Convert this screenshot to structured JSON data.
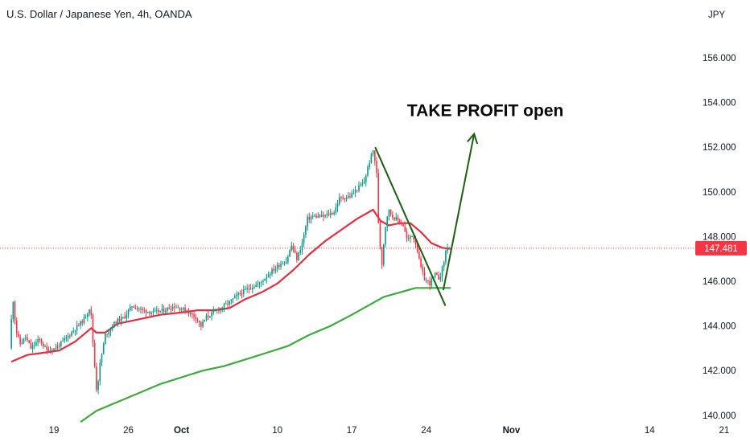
{
  "header": {
    "title": "U.S. Dollar / Japanese Yen, 4h, OANDA",
    "currency": "JPY"
  },
  "colors": {
    "up": "#089981",
    "down": "#f23645",
    "ema_fast": "#e0303f",
    "ema_slow": "#3daa3d",
    "trend": "#1f5c14",
    "price_line": "#f23645",
    "text": "#131722"
  },
  "chart_data": {
    "type": "candlestick",
    "symbol": "U.S. Dollar / Japanese Yen, 4h, OANDA",
    "ylabel": "JPY",
    "ylim": [
      139.8,
      157.5
    ],
    "y_ticks": [
      "156.000",
      "154.000",
      "152.000",
      "150.000",
      "148.000",
      "146.000",
      "144.000",
      "142.000",
      "140.000"
    ],
    "x_ticks": [
      {
        "label": "19",
        "bold": false
      },
      {
        "label": "26",
        "bold": false
      },
      {
        "label": "Oct",
        "bold": true
      },
      {
        "label": "10",
        "bold": false
      },
      {
        "label": "17",
        "bold": false
      },
      {
        "label": "24",
        "bold": false
      },
      {
        "label": "Nov",
        "bold": true
      },
      {
        "label": "14",
        "bold": false
      },
      {
        "label": "21",
        "bold": false
      }
    ],
    "x_tick_days": [
      19,
      26,
      31,
      40,
      47,
      54,
      62,
      75,
      82
    ],
    "last_price": "147.481",
    "last_price_value": 147.48,
    "price_anchors": [
      [
        15.0,
        143.0
      ],
      [
        15.3,
        145.3
      ],
      [
        15.6,
        143.8
      ],
      [
        16.0,
        143.2
      ],
      [
        16.5,
        143.5
      ],
      [
        17.0,
        143.0
      ],
      [
        17.8,
        143.4
      ],
      [
        18.5,
        142.9
      ],
      [
        19.3,
        143.0
      ],
      [
        20.0,
        143.3
      ],
      [
        21.0,
        143.8
      ],
      [
        22.0,
        144.3
      ],
      [
        22.6,
        144.9
      ],
      [
        22.9,
        142.8
      ],
      [
        23.2,
        141.0
      ],
      [
        23.5,
        142.3
      ],
      [
        24.0,
        143.6
      ],
      [
        25.0,
        144.2
      ],
      [
        25.8,
        144.4
      ],
      [
        26.5,
        144.9
      ],
      [
        27.5,
        144.7
      ],
      [
        28.5,
        144.6
      ],
      [
        29.5,
        144.7
      ],
      [
        30.5,
        144.9
      ],
      [
        31.5,
        144.7
      ],
      [
        32.5,
        144.4
      ],
      [
        33.0,
        144.0
      ],
      [
        33.5,
        144.4
      ],
      [
        34.5,
        144.7
      ],
      [
        35.5,
        145.0
      ],
      [
        36.5,
        145.4
      ],
      [
        37.5,
        145.7
      ],
      [
        38.5,
        145.9
      ],
      [
        39.5,
        146.4
      ],
      [
        40.5,
        146.8
      ],
      [
        41.0,
        146.9
      ],
      [
        41.5,
        147.6
      ],
      [
        42.0,
        147.0
      ],
      [
        42.5,
        147.7
      ],
      [
        43.0,
        148.8
      ],
      [
        43.5,
        148.9
      ],
      [
        44.5,
        148.9
      ],
      [
        45.5,
        149.1
      ],
      [
        46.0,
        149.7
      ],
      [
        47.0,
        149.8
      ],
      [
        47.8,
        150.2
      ],
      [
        48.3,
        150.4
      ],
      [
        48.8,
        151.3
      ],
      [
        49.2,
        151.9
      ],
      [
        49.5,
        150.8
      ],
      [
        49.7,
        148.2
      ],
      [
        50.0,
        146.8
      ],
      [
        50.3,
        148.4
      ],
      [
        50.6,
        149.2
      ],
      [
        51.0,
        148.9
      ],
      [
        51.6,
        148.7
      ],
      [
        52.0,
        148.5
      ],
      [
        52.4,
        147.8
      ],
      [
        52.8,
        148.1
      ],
      [
        53.2,
        147.7
      ],
      [
        53.6,
        146.7
      ],
      [
        54.0,
        146.1
      ],
      [
        54.5,
        145.9
      ],
      [
        55.0,
        146.3
      ],
      [
        55.4,
        146.1
      ],
      [
        55.8,
        146.8
      ],
      [
        56.1,
        147.6
      ],
      [
        56.3,
        147.48
      ]
    ],
    "ema_fast": {
      "name": "",
      "points": [
        [
          15.0,
          142.4
        ],
        [
          16.5,
          142.7
        ],
        [
          18.0,
          142.8
        ],
        [
          19.5,
          142.9
        ],
        [
          21.0,
          143.3
        ],
        [
          22.5,
          143.9
        ],
        [
          23.0,
          143.7
        ],
        [
          23.8,
          143.7
        ],
        [
          25.0,
          144.1
        ],
        [
          27.0,
          144.3
        ],
        [
          29.0,
          144.5
        ],
        [
          31.0,
          144.6
        ],
        [
          32.5,
          144.7
        ],
        [
          34.0,
          144.7
        ],
        [
          35.5,
          144.8
        ],
        [
          37.0,
          145.2
        ],
        [
          38.5,
          145.5
        ],
        [
          40.0,
          145.9
        ],
        [
          41.5,
          146.5
        ],
        [
          43.0,
          147.2
        ],
        [
          44.5,
          147.8
        ],
        [
          46.0,
          148.3
        ],
        [
          47.5,
          148.8
        ],
        [
          49.0,
          149.2
        ],
        [
          49.7,
          148.7
        ],
        [
          50.5,
          148.5
        ],
        [
          51.5,
          148.6
        ],
        [
          52.5,
          148.6
        ],
        [
          53.5,
          148.2
        ],
        [
          54.5,
          147.7
        ],
        [
          55.5,
          147.5
        ],
        [
          56.3,
          147.45
        ]
      ]
    },
    "ema_slow": {
      "name": "",
      "points": [
        [
          21.5,
          139.7
        ],
        [
          23.0,
          140.2
        ],
        [
          25.0,
          140.6
        ],
        [
          27.0,
          141.0
        ],
        [
          29.0,
          141.4
        ],
        [
          31.0,
          141.7
        ],
        [
          33.0,
          142.0
        ],
        [
          35.0,
          142.2
        ],
        [
          37.0,
          142.5
        ],
        [
          39.0,
          142.8
        ],
        [
          41.0,
          143.1
        ],
        [
          43.0,
          143.6
        ],
        [
          45.0,
          144.0
        ],
        [
          47.0,
          144.5
        ],
        [
          48.5,
          144.9
        ],
        [
          50.0,
          145.3
        ],
        [
          51.5,
          145.5
        ],
        [
          53.0,
          145.7
        ],
        [
          54.5,
          145.7
        ],
        [
          56.3,
          145.7
        ]
      ]
    },
    "annotations": {
      "text": "TAKE PROFIT open",
      "text_at": [
        52.2,
        153.4
      ],
      "trend_line": [
        [
          49.2,
          152.0
        ],
        [
          55.8,
          144.9
        ]
      ],
      "projection_line": [
        [
          55.6,
          145.6
        ],
        [
          58.5,
          152.6
        ]
      ]
    },
    "grid": false,
    "legend": "none"
  }
}
